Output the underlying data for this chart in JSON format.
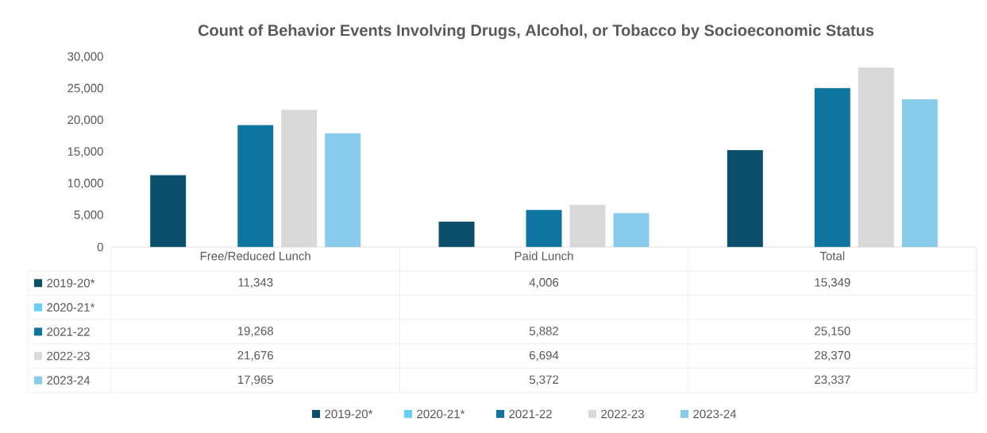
{
  "chart_data": {
    "type": "bar",
    "title": "Count of Behavior Events Involving Drugs, Alcohol, or Tobacco by Socioeconomic Status",
    "categories": [
      "Free/Reduced Lunch",
      "Paid Lunch",
      "Total"
    ],
    "series": [
      {
        "name": "2019-20*",
        "color": "#0b4f6c",
        "values": [
          11343,
          4006,
          15349
        ],
        "value_labels": [
          "11,343",
          "4,006",
          "15,349"
        ]
      },
      {
        "name": "2020-21*",
        "color": "#66cff5",
        "values": [
          null,
          null,
          null
        ],
        "value_labels": [
          null,
          null,
          null
        ]
      },
      {
        "name": "2021-22",
        "color": "#0e75a0",
        "values": [
          19268,
          5882,
          25150
        ],
        "value_labels": [
          "19,268",
          "5,882",
          "25,150"
        ]
      },
      {
        "name": "2022-23",
        "color": "#d9d9d9",
        "values": [
          21676,
          6694,
          28370
        ],
        "value_labels": [
          "21,676",
          "6,694",
          "28,370"
        ]
      },
      {
        "name": "2023-24",
        "color": "#88cbea",
        "values": [
          17965,
          5372,
          23337
        ],
        "value_labels": [
          "17,965",
          "5,372",
          "23,337"
        ]
      }
    ],
    "ylim": [
      0,
      30000
    ],
    "yticks": [
      {
        "value": 0,
        "label": "0"
      },
      {
        "value": 5000,
        "label": "5,000"
      },
      {
        "value": 10000,
        "label": "10,000"
      },
      {
        "value": 15000,
        "label": "15,000"
      },
      {
        "value": 20000,
        "label": "20,000"
      },
      {
        "value": 25000,
        "label": "25,000"
      },
      {
        "value": 30000,
        "label": "30,000"
      }
    ],
    "grid": false,
    "legend": "bottom"
  }
}
